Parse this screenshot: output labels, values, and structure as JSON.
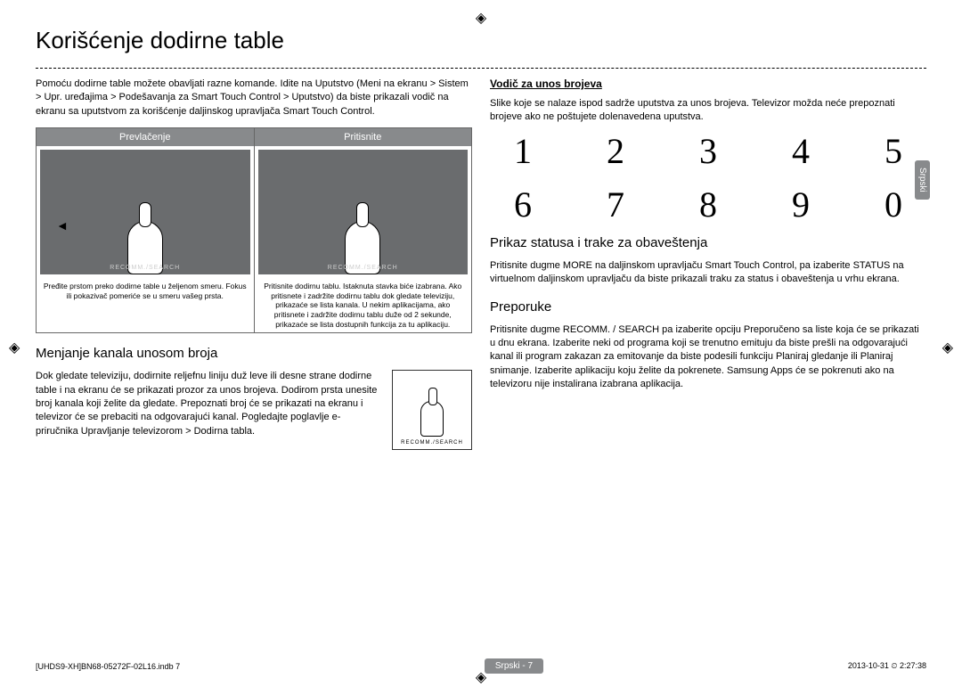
{
  "title": "Korišćenje dodirne table",
  "lang_tab": "Srpski",
  "intro": "Pomoću dodirne table možete obavljati razne komande. Idite na Uputstvo (Meni na ekranu > Sistem > Upr. uređajima > Podešavanja za Smart Touch Control > Uputstvo) da biste prikazali vodič na ekranu sa uputstvom za korišćenje daljinskog upravljača Smart Touch Control.",
  "gesture": {
    "col1_head": "Prevlačenje",
    "col2_head": "Pritisnite",
    "recomm_label": "RECOMM./SEARCH",
    "cap1": "Pređite prstom preko dodirne table u željenom smeru. Fokus ili pokazivač pomeriće se u smeru vašeg prsta.",
    "cap2": "Pritisnite dodirnu tablu. Istaknuta stavka biće izabrana. Ako pritisnete i zadržite dodirnu tablu dok gledate televiziju, prikazaće se lista kanala. U nekim aplikacijama, ako pritisnete i zadržite dodirnu tablu duže od 2 sekunde, prikazaće se lista dostupnih funkcija za tu aplikaciju."
  },
  "section_channel": {
    "heading": "Menjanje kanala unosom broja",
    "body": "Dok gledate televiziju, dodirnite reljefnu liniju duž leve ili desne strane dodirne table i na ekranu će se prikazati prozor za unos brojeva. Dodirom prsta unesite broj kanala koji želite da gledate. Prepoznati broj će se prikazati na ekranu i televizor će se prebaciti na odgovarajući kanal. Pogledajte poglavlje e-priručnika Upravljanje televizorom > Dodirna tabla.",
    "mini_label": "RECOMM./SEARCH"
  },
  "section_digits": {
    "heading": "Vodič za unos brojeva",
    "body": "Slike koje se nalaze ispod sadrže uputstva za unos brojeva. Televizor možda neće prepoznati brojeve ako ne poštujete dolenavedena uputstva.",
    "digits": [
      "1",
      "2",
      "3",
      "4",
      "5",
      "6",
      "7",
      "8",
      "9",
      "0"
    ]
  },
  "section_status": {
    "heading": "Prikaz statusa i trake za obaveštenja",
    "body": "Pritisnite dugme MORE na daljinskom upravljaču Smart Touch Control, pa izaberite STATUS na virtuelnom daljinskom upravljaču da biste prikazali traku za status i obaveštenja u vrhu ekrana."
  },
  "section_recommend": {
    "heading": "Preporuke",
    "body": "Pritisnite dugme RECOMM. / SEARCH pa izaberite opciju Preporučeno sa liste koja će se prikazati u dnu ekrana. Izaberite neki od programa koji se trenutno emituju da biste prešli na odgovarajući kanal ili program zakazan za emitovanje da biste podesili funkciju Planiraj gledanje ili Planiraj snimanje. Izaberite aplikaciju koju želite da pokrenete. Samsung Apps će se pokrenuti ako na televizoru nije instalirana izabrana aplikacija."
  },
  "footer": {
    "left": "[UHDS9-XH]BN68-05272F-02L16.indb   7",
    "center": "Srpski - 7",
    "right": "2013-10-31   ⏲ 2:27:38"
  },
  "reg_mark": "◈"
}
